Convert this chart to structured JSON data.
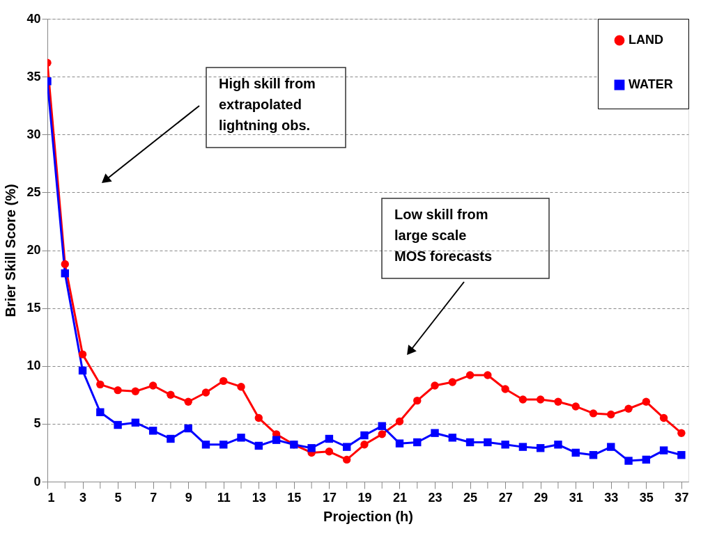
{
  "chart_data": {
    "type": "line",
    "xlabel": "Projection  (h)",
    "ylabel": "Brier Skill Score  (%)",
    "x": [
      1,
      2,
      3,
      4,
      5,
      6,
      7,
      8,
      9,
      10,
      11,
      12,
      13,
      14,
      15,
      16,
      17,
      18,
      19,
      20,
      21,
      22,
      23,
      24,
      25,
      26,
      27,
      28,
      29,
      30,
      31,
      32,
      33,
      34,
      35,
      36,
      37
    ],
    "series": [
      {
        "name": "LAND",
        "color": "#ff0000",
        "marker": "circle",
        "values": [
          36.2,
          18.8,
          11.0,
          8.4,
          7.9,
          7.8,
          8.3,
          7.5,
          6.9,
          7.7,
          8.7,
          8.2,
          5.5,
          4.1,
          3.2,
          2.5,
          2.6,
          1.9,
          3.2,
          4.1,
          5.2,
          7.0,
          8.3,
          8.6,
          9.2,
          9.2,
          8.0,
          7.1,
          7.1,
          6.9,
          6.5,
          5.9,
          5.8,
          6.3,
          6.9,
          5.5,
          4.2
        ]
      },
      {
        "name": "WATER",
        "color": "#0000ff",
        "marker": "square",
        "values": [
          34.6,
          18.0,
          9.6,
          6.0,
          4.9,
          5.1,
          4.4,
          3.7,
          4.6,
          3.2,
          3.2,
          3.8,
          3.1,
          3.6,
          3.2,
          2.9,
          3.7,
          3.0,
          4.0,
          4.8,
          3.3,
          3.4,
          4.2,
          3.8,
          3.4,
          3.4,
          3.2,
          3.0,
          2.9,
          3.2,
          2.5,
          2.3,
          3.0,
          1.8,
          1.9,
          2.7,
          2.3
        ]
      }
    ],
    "xlim": [
      1,
      37.4
    ],
    "xticks": [
      1,
      {
        "value": 2,
        "label": null
      },
      3,
      {
        "value": 4,
        "label": null
      },
      5,
      {
        "value": 6,
        "label": null
      },
      7,
      {
        "value": 8,
        "label": null
      },
      9,
      {
        "value": 10,
        "label": null
      },
      11,
      {
        "value": 12,
        "label": null
      },
      13,
      {
        "value": 14,
        "label": null
      },
      15,
      {
        "value": 16,
        "label": null
      },
      17,
      {
        "value": 18,
        "label": null
      },
      19,
      {
        "value": 20,
        "label": null
      },
      21,
      {
        "value": 22,
        "label": null
      },
      23,
      {
        "value": 24,
        "label": null
      },
      25,
      {
        "value": 26,
        "label": null
      },
      27,
      {
        "value": 28,
        "label": null
      },
      29,
      {
        "value": 30,
        "label": null
      },
      31,
      {
        "value": 32,
        "label": null
      },
      33,
      {
        "value": 34,
        "label": null
      },
      35,
      {
        "value": 36,
        "label": null
      },
      37
    ],
    "ylim": [
      0,
      40
    ],
    "yticks": [
      0,
      5,
      10,
      15,
      20,
      25,
      30,
      35,
      40
    ],
    "grid": "y",
    "legend": "top right",
    "line_style": "solid",
    "annotations": [
      "High skill from\nextrapolated\nlightning obs.",
      "Low skill from\nlarge scale\nMOS forecasts"
    ]
  }
}
